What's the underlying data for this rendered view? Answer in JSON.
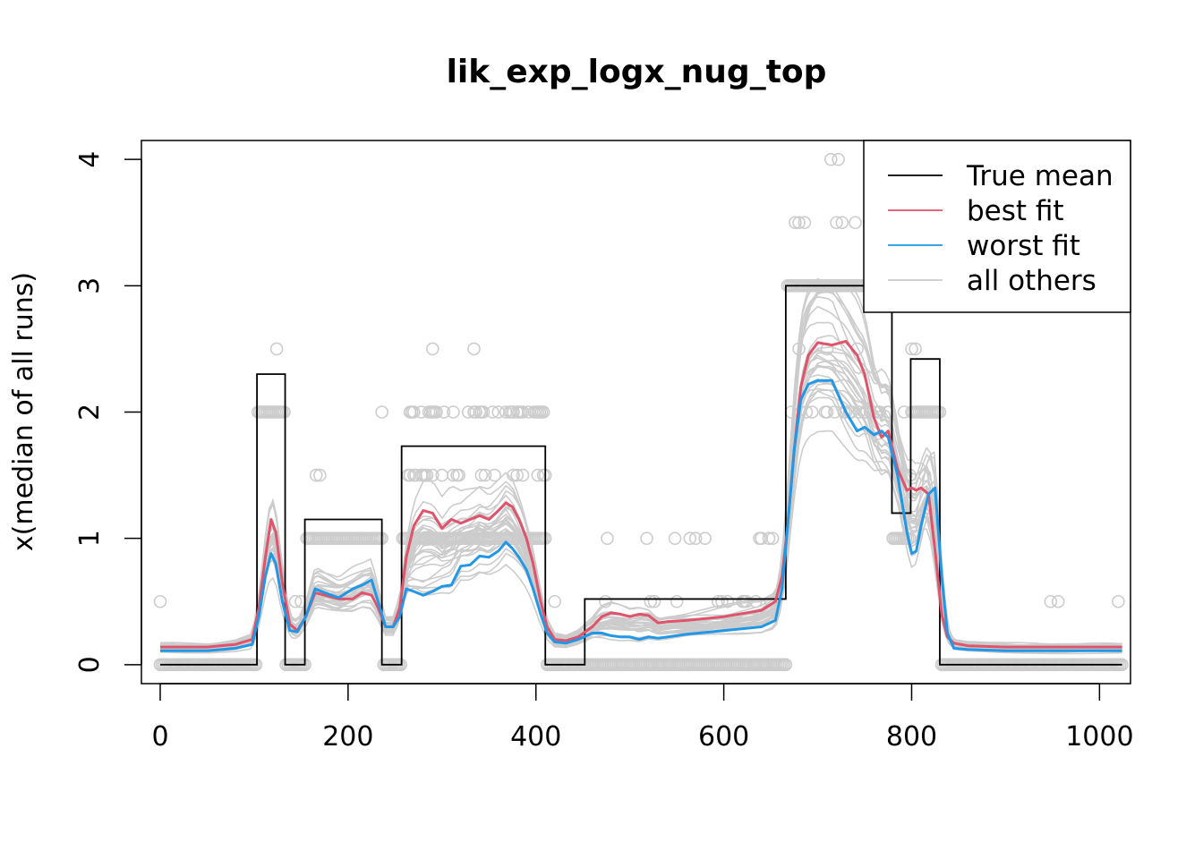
{
  "chart_data": {
    "type": "line",
    "title": "lik_exp_logx_nug_top",
    "xlabel": "",
    "ylabel": "x(median of all runs)",
    "xlim": [
      -20,
      1033
    ],
    "ylim": [
      -0.15,
      4.15
    ],
    "xticks": [
      0,
      200,
      400,
      600,
      800,
      1000
    ],
    "yticks": [
      0,
      1,
      2,
      3,
      4
    ],
    "legend_position": "top-right",
    "grid": false,
    "true_mean": {
      "name": "True mean",
      "color": "#000000",
      "x": [
        0,
        103,
        103,
        133,
        133,
        154,
        154,
        236,
        236,
        257,
        257,
        410,
        410,
        452,
        452,
        666,
        666,
        779,
        779,
        799,
        799,
        830,
        830,
        1024
      ],
      "y": [
        0,
        0,
        2.3,
        2.3,
        0,
        0,
        1.15,
        1.15,
        0,
        0,
        1.73,
        1.73,
        0,
        0,
        0.52,
        0.52,
        3.0,
        3.0,
        1.2,
        1.2,
        2.42,
        2.42,
        0,
        0
      ]
    },
    "series": [
      {
        "name": "best fit",
        "color": "#DF536B",
        "x": [
          0,
          50,
          80,
          98,
          105,
          112,
          118,
          123,
          130,
          138,
          146,
          155,
          165,
          175,
          190,
          205,
          215,
          225,
          232,
          240,
          248,
          255,
          262,
          270,
          280,
          290,
          300,
          310,
          320,
          330,
          340,
          350,
          360,
          368,
          375,
          382,
          390,
          397,
          405,
          412,
          420,
          432,
          445,
          460,
          470,
          480,
          490,
          500,
          510,
          520,
          530,
          540,
          560,
          600,
          640,
          655,
          662,
          668,
          675,
          682,
          690,
          700,
          715,
          730,
          742,
          750,
          760,
          768,
          775,
          785,
          795,
          800,
          805,
          810,
          818,
          825,
          832,
          838,
          845,
          860,
          900,
          1000,
          1024
        ],
        "y": [
          0.14,
          0.14,
          0.16,
          0.2,
          0.45,
          0.85,
          1.15,
          1.05,
          0.65,
          0.32,
          0.27,
          0.38,
          0.57,
          0.55,
          0.52,
          0.52,
          0.57,
          0.55,
          0.45,
          0.3,
          0.3,
          0.45,
          0.85,
          1.1,
          1.22,
          1.2,
          1.08,
          1.15,
          1.12,
          1.15,
          1.18,
          1.15,
          1.22,
          1.28,
          1.25,
          1.15,
          1.0,
          0.8,
          0.5,
          0.3,
          0.2,
          0.19,
          0.22,
          0.3,
          0.38,
          0.41,
          0.4,
          0.38,
          0.4,
          0.39,
          0.33,
          0.34,
          0.35,
          0.38,
          0.43,
          0.5,
          0.7,
          1.1,
          1.7,
          2.2,
          2.45,
          2.55,
          2.53,
          2.56,
          2.45,
          2.3,
          1.95,
          1.8,
          1.85,
          1.55,
          1.38,
          1.4,
          1.38,
          1.4,
          1.35,
          0.9,
          0.4,
          0.22,
          0.17,
          0.15,
          0.14,
          0.14,
          0.14
        ]
      },
      {
        "name": "worst fit",
        "color": "#2297E6",
        "x": [
          0,
          50,
          80,
          98,
          105,
          112,
          118,
          123,
          130,
          138,
          146,
          155,
          165,
          175,
          190,
          205,
          215,
          225,
          232,
          240,
          248,
          255,
          262,
          270,
          280,
          290,
          300,
          310,
          320,
          330,
          340,
          350,
          360,
          368,
          375,
          382,
          390,
          397,
          405,
          412,
          420,
          432,
          445,
          460,
          470,
          480,
          490,
          500,
          510,
          520,
          530,
          540,
          560,
          600,
          640,
          655,
          662,
          668,
          675,
          682,
          690,
          700,
          715,
          730,
          742,
          750,
          760,
          768,
          775,
          785,
          795,
          800,
          805,
          810,
          818,
          825,
          832,
          838,
          845,
          860,
          900,
          1000,
          1024
        ],
        "y": [
          0.11,
          0.11,
          0.13,
          0.16,
          0.38,
          0.7,
          0.88,
          0.8,
          0.5,
          0.27,
          0.26,
          0.38,
          0.6,
          0.57,
          0.53,
          0.6,
          0.63,
          0.67,
          0.5,
          0.3,
          0.3,
          0.38,
          0.6,
          0.58,
          0.55,
          0.58,
          0.62,
          0.63,
          0.78,
          0.79,
          0.86,
          0.85,
          0.9,
          0.97,
          0.92,
          0.85,
          0.75,
          0.6,
          0.4,
          0.25,
          0.18,
          0.17,
          0.2,
          0.25,
          0.25,
          0.23,
          0.22,
          0.22,
          0.2,
          0.22,
          0.21,
          0.22,
          0.24,
          0.27,
          0.3,
          0.35,
          0.6,
          1.1,
          1.7,
          2.1,
          2.22,
          2.25,
          2.25,
          2.0,
          1.85,
          1.88,
          1.82,
          1.85,
          1.8,
          1.5,
          1.05,
          0.88,
          0.9,
          1.1,
          1.35,
          1.4,
          0.7,
          0.25,
          0.13,
          0.12,
          0.11,
          0.11,
          0.11
        ]
      }
    ],
    "others": {
      "name": "all others",
      "color": "#CCCCCC",
      "count": 28
    },
    "observations": {
      "color": "#CCCCCC",
      "levels": [
        0,
        0.5,
        1.0,
        1.5,
        2.0,
        2.5,
        3.0,
        3.5,
        4.0
      ]
    }
  },
  "legend": {
    "items": [
      {
        "label": "True mean",
        "color": "#000000"
      },
      {
        "label": "best fit",
        "color": "#DF536B"
      },
      {
        "label": "worst fit",
        "color": "#2297E6"
      },
      {
        "label": "all others",
        "color": "#CCCCCC"
      }
    ]
  }
}
